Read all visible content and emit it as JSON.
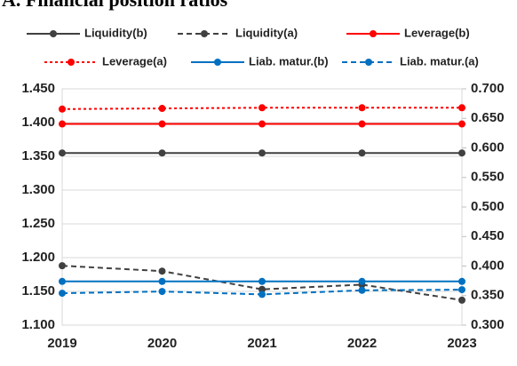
{
  "chart_data": {
    "type": "line",
    "title": "A. Financial position ratios",
    "categories": [
      "2019",
      "2020",
      "2021",
      "2022",
      "2023"
    ],
    "series": [
      {
        "name": "Liquidity(b)",
        "color": "#404040",
        "dash": "solid",
        "values": [
          1.355,
          1.355,
          1.355,
          1.355,
          1.355
        ]
      },
      {
        "name": "Liquidity(a)",
        "color": "#404040",
        "dash": "dashed",
        "values": [
          1.188,
          1.18,
          1.153,
          1.16,
          1.137
        ]
      },
      {
        "name": "Leverage(b)",
        "color": "#ff0000",
        "dash": "solid",
        "values": [
          1.398,
          1.398,
          1.398,
          1.398,
          1.398
        ]
      },
      {
        "name": "Leverage(a)",
        "color": "#ff0000",
        "dash": "dotted",
        "values": [
          1.42,
          1.421,
          1.422,
          1.422,
          1.422
        ]
      },
      {
        "name": "Liab. matur.(b)",
        "color": "#0070c0",
        "dash": "solid",
        "axis": "y2",
        "values": [
          0.374,
          0.374,
          0.374,
          0.374,
          0.374
        ]
      },
      {
        "name": "Liab. matur.(a)",
        "color": "#0070c0",
        "dash": "dashed",
        "axis": "y2",
        "values": [
          0.354,
          0.357,
          0.352,
          0.359,
          0.36
        ]
      }
    ],
    "ylim": [
      1.1,
      1.45
    ],
    "yticks": [
      {
        "value": 1.1,
        "label": "1.100"
      },
      {
        "value": 1.15,
        "label": "1.150"
      },
      {
        "value": 1.2,
        "label": "1.200"
      },
      {
        "value": 1.25,
        "label": "1.250"
      },
      {
        "value": 1.3,
        "label": "1.300"
      },
      {
        "value": 1.35,
        "label": "1.350"
      },
      {
        "value": 1.4,
        "label": "1.400"
      },
      {
        "value": 1.45,
        "label": "1.450"
      }
    ],
    "y2lim": [
      0.3,
      0.7
    ],
    "y2ticks": [
      {
        "value": 0.3,
        "label": "0.300"
      },
      {
        "value": 0.35,
        "label": "0.350"
      },
      {
        "value": 0.4,
        "label": "0.400"
      },
      {
        "value": 0.45,
        "label": "0.450"
      },
      {
        "value": 0.5,
        "label": "0.500"
      },
      {
        "value": 0.55,
        "label": "0.550"
      },
      {
        "value": 0.6,
        "label": "0.600"
      },
      {
        "value": 0.65,
        "label": "0.650"
      },
      {
        "value": 0.7,
        "label": "0.700"
      }
    ],
    "grid": true,
    "legend": "top"
  }
}
